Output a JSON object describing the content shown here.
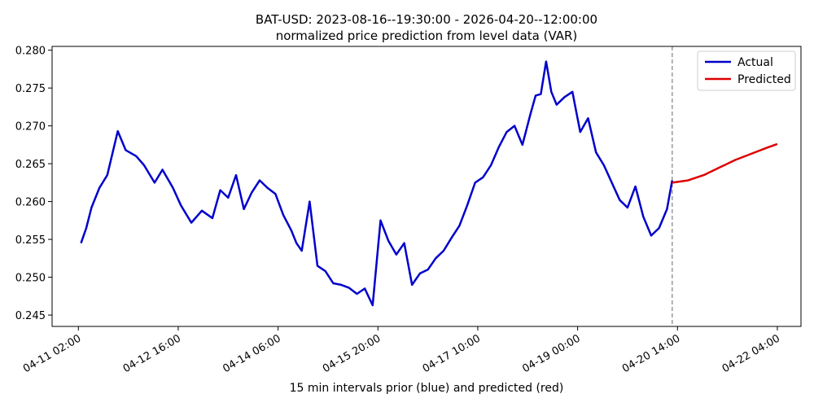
{
  "chart_data": {
    "type": "line",
    "title": "BAT-USD: 2023-08-16--19:30:00 - 2026-04-20--12:00:00",
    "subtitle": "normalized price prediction from level data (VAR)",
    "xlabel": "15 min intervals prior (blue) and predicted (red)",
    "ylabel": "",
    "x_tick_labels": [
      "04-11 02:00",
      "04-12 16:00",
      "04-14 06:00",
      "04-15 20:00",
      "04-17 10:00",
      "04-19 00:00",
      "04-20 14:00",
      "04-22 04:00"
    ],
    "x_ticks": [
      "2026-04-11 02:00",
      "2026-04-12 16:00",
      "2026-04-14 06:00",
      "2026-04-15 20:00",
      "2026-04-17 10:00",
      "2026-04-19 00:00",
      "2026-04-20 14:00",
      "2026-04-22 04:00"
    ],
    "xlim": [
      "2026-04-10 16:00",
      "2026-04-22 13:00"
    ],
    "ylim": [
      0.2435,
      0.2805
    ],
    "y_ticks": [
      0.245,
      0.25,
      0.255,
      0.26,
      0.265,
      0.27,
      0.275,
      0.28
    ],
    "y_tick_labels": [
      "0.245",
      "0.250",
      "0.255",
      "0.260",
      "0.265",
      "0.270",
      "0.275",
      "0.280"
    ],
    "grid": false,
    "legend_position": "top-right",
    "vline": {
      "x": "2026-04-20 12:00",
      "style": "dashed",
      "color": "#808080"
    },
    "series": [
      {
        "name": "Actual",
        "color": "#0000cc",
        "x": [
          "2026-04-11 03:00",
          "2026-04-11 05:00",
          "2026-04-11 07:00",
          "2026-04-11 10:00",
          "2026-04-11 13:00",
          "2026-04-11 17:00",
          "2026-04-11 20:00",
          "2026-04-12 00:00",
          "2026-04-12 03:00",
          "2026-04-12 07:00",
          "2026-04-12 10:00",
          "2026-04-12 14:00",
          "2026-04-12 17:00",
          "2026-04-12 21:00",
          "2026-04-13 01:00",
          "2026-04-13 05:00",
          "2026-04-13 08:00",
          "2026-04-13 11:00",
          "2026-04-13 14:00",
          "2026-04-13 17:00",
          "2026-04-13 20:00",
          "2026-04-13 23:00",
          "2026-04-14 02:00",
          "2026-04-14 05:00",
          "2026-04-14 08:00",
          "2026-04-14 11:00",
          "2026-04-14 13:00",
          "2026-04-14 15:00",
          "2026-04-14 18:00",
          "2026-04-14 21:00",
          "2026-04-15 00:00",
          "2026-04-15 03:00",
          "2026-04-15 06:00",
          "2026-04-15 09:00",
          "2026-04-15 12:00",
          "2026-04-15 15:00",
          "2026-04-15 18:00",
          "2026-04-15 21:00",
          "2026-04-16 00:00",
          "2026-04-16 03:00",
          "2026-04-16 06:00",
          "2026-04-16 09:00",
          "2026-04-16 12:00",
          "2026-04-16 15:00",
          "2026-04-16 18:00",
          "2026-04-16 21:00",
          "2026-04-17 00:00",
          "2026-04-17 03:00",
          "2026-04-17 06:00",
          "2026-04-17 09:00",
          "2026-04-17 12:00",
          "2026-04-17 15:00",
          "2026-04-17 18:00",
          "2026-04-17 21:00",
          "2026-04-18 00:00",
          "2026-04-18 03:00",
          "2026-04-18 06:00",
          "2026-04-18 08:00",
          "2026-04-18 10:00",
          "2026-04-18 12:00",
          "2026-04-18 14:00",
          "2026-04-18 16:00",
          "2026-04-18 19:00",
          "2026-04-18 22:00",
          "2026-04-19 01:00",
          "2026-04-19 04:00",
          "2026-04-19 07:00",
          "2026-04-19 10:00",
          "2026-04-19 13:00",
          "2026-04-19 16:00",
          "2026-04-19 19:00",
          "2026-04-19 22:00",
          "2026-04-20 01:00",
          "2026-04-20 04:00",
          "2026-04-20 07:00",
          "2026-04-20 10:00",
          "2026-04-20 12:00"
        ],
        "values": [
          0.2545,
          0.2565,
          0.2592,
          0.2618,
          0.2635,
          0.2693,
          0.2668,
          0.266,
          0.2648,
          0.2625,
          0.2642,
          0.2618,
          0.2595,
          0.2572,
          0.2588,
          0.2578,
          0.2615,
          0.2605,
          0.2635,
          0.259,
          0.2612,
          0.2628,
          0.2618,
          0.261,
          0.2582,
          0.2562,
          0.2545,
          0.2535,
          0.26,
          0.2515,
          0.2508,
          0.2492,
          0.249,
          0.2486,
          0.2478,
          0.2485,
          0.2463,
          0.2575,
          0.2548,
          0.253,
          0.2545,
          0.249,
          0.2505,
          0.251,
          0.2525,
          0.2535,
          0.2552,
          0.2568,
          0.2595,
          0.2625,
          0.2632,
          0.2648,
          0.2672,
          0.2692,
          0.27,
          0.2675,
          0.2715,
          0.274,
          0.2742,
          0.2785,
          0.2745,
          0.2728,
          0.2738,
          0.2745,
          0.2692,
          0.271,
          0.2665,
          0.2648,
          0.2625,
          0.2602,
          0.2592,
          0.262,
          0.258,
          0.2555,
          0.2565,
          0.259,
          0.2628
        ]
      },
      {
        "name": "Predicted",
        "color": "#dd0000",
        "x": [
          "2026-04-20 12:00",
          "2026-04-20 18:00",
          "2026-04-21 00:00",
          "2026-04-21 06:00",
          "2026-04-21 12:00",
          "2026-04-21 18:00",
          "2026-04-22 00:00",
          "2026-04-22 04:00"
        ],
        "values": [
          0.2625,
          0.2628,
          0.2635,
          0.2645,
          0.2655,
          0.2663,
          0.2671,
          0.2676
        ]
      }
    ]
  }
}
